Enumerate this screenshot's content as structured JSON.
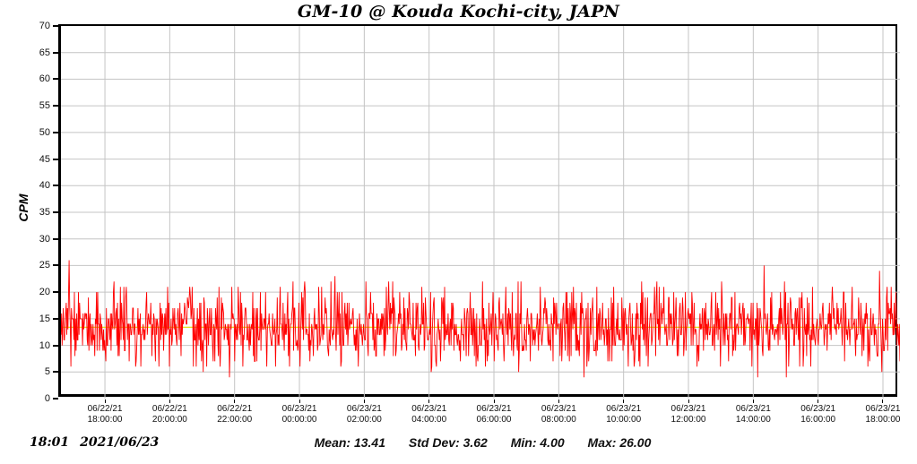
{
  "title": "GM-10 @ Kouda Kochi-city, JAPN",
  "y_axis": {
    "label": "CPM",
    "ticks": [
      0,
      5,
      10,
      15,
      20,
      25,
      30,
      35,
      40,
      45,
      50,
      55,
      60,
      65,
      70
    ],
    "min": 0,
    "max": 70
  },
  "x_axis": {
    "ticks": [
      {
        "date": "06/22/21",
        "time": "18:00:00"
      },
      {
        "date": "06/22/21",
        "time": "20:00:00"
      },
      {
        "date": "06/22/21",
        "time": "22:00:00"
      },
      {
        "date": "06/23/21",
        "time": "00:00:00"
      },
      {
        "date": "06/23/21",
        "time": "02:00:00"
      },
      {
        "date": "06/23/21",
        "time": "04:00:00"
      },
      {
        "date": "06/23/21",
        "time": "06:00:00"
      },
      {
        "date": "06/23/21",
        "time": "08:00:00"
      },
      {
        "date": "06/23/21",
        "time": "10:00:00"
      },
      {
        "date": "06/23/21",
        "time": "12:00:00"
      },
      {
        "date": "06/23/21",
        "time": "14:00:00"
      },
      {
        "date": "06/23/21",
        "time": "16:00:00"
      }
    ],
    "last_tick": {
      "date": "06/23/21",
      "time": "18:00:00"
    }
  },
  "footer": {
    "timestamp": {
      "time": "18:01",
      "date": "2021/06/23"
    },
    "stats": [
      {
        "label": "Mean:",
        "value": "13.41"
      },
      {
        "label": "Std Dev:",
        "value": "3.62"
      },
      {
        "label": "Min:",
        "value": "4.00"
      },
      {
        "label": "Max:",
        "value": "26.00"
      }
    ]
  },
  "colors": {
    "trace": "#ff0000",
    "mean_line": "#e0e000",
    "grid": "#c4c4c4",
    "axis": "#000000",
    "background": "#ffffff"
  },
  "chart_data": {
    "type": "line",
    "title": "GM-10 @ Kouda Kochi-city, JAPN",
    "xlabel": "",
    "ylabel": "CPM",
    "ylim": [
      0,
      70
    ],
    "y_tick_step": 5,
    "x_range": [
      "06/22/21 18:00:00",
      "06/23/21 18:00:00"
    ],
    "x_tick_interval_hours": 2,
    "grid": true,
    "legend": "none",
    "mean_line": {
      "value": 13.41,
      "color": "#e0e000"
    },
    "stats": {
      "mean": 13.41,
      "std_dev": 3.62,
      "min": 4.0,
      "max": 26.0
    },
    "series": [
      {
        "name": "CPM",
        "color": "#ff0000",
        "n_points": 1440,
        "mean": 13.41,
        "std_dev": 3.62,
        "min": 4,
        "max": 26,
        "description": "Geiger counter counts-per-minute, noisy integer trace oscillating mostly 7-21 around mean 13.41; single spike to 26 near start; dips to 4 near the 83-87% region"
      }
    ]
  }
}
